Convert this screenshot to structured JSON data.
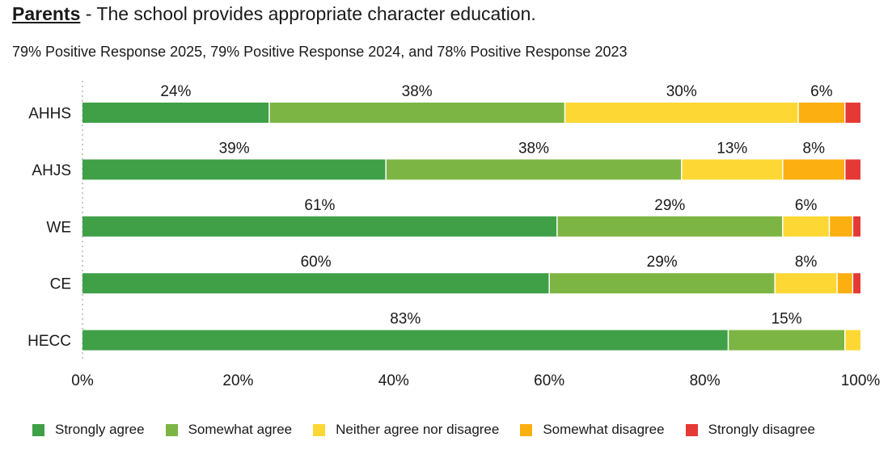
{
  "title": {
    "prefix": "Parents",
    "rest": " - The school provides appropriate character education."
  },
  "chart_data": {
    "type": "bar",
    "orientation": "horizontal",
    "stacked": true,
    "title": "Parents - The school provides appropriate character education.",
    "subtitle": "79% Positive Response 2025, 79% Positive Response 2024, and 78% Positive Response 2023",
    "categories": [
      "AHHS",
      "AHJS",
      "WE",
      "CE",
      "HECC"
    ],
    "xlim": [
      0,
      100
    ],
    "xticks": [
      "0%",
      "20%",
      "40%",
      "60%",
      "80%",
      "100%"
    ],
    "series": [
      {
        "name": "Strongly agree",
        "color": "#3fa047",
        "values": [
          24,
          39,
          61,
          60,
          83
        ],
        "labels": [
          "24%",
          "39%",
          "61%",
          "60%",
          "83%"
        ]
      },
      {
        "name": "Somewhat agree",
        "color": "#7cb543",
        "values": [
          38,
          38,
          29,
          29,
          15
        ],
        "labels": [
          "38%",
          "38%",
          "29%",
          "29%",
          "15%"
        ]
      },
      {
        "name": "Neither agree nor disagree",
        "color": "#fdd835",
        "values": [
          30,
          13,
          6,
          8,
          2
        ],
        "labels": [
          "30%",
          "13%",
          "6%",
          "8%",
          ""
        ]
      },
      {
        "name": "Somewhat disagree",
        "color": "#fbaf10",
        "values": [
          6,
          8,
          3,
          2,
          0
        ],
        "labels": [
          "6%",
          "8%",
          "",
          "",
          ""
        ]
      },
      {
        "name": "Strongly disagree",
        "color": "#e53935",
        "values": [
          2,
          2,
          1,
          1,
          0
        ],
        "labels": [
          "",
          "",
          "",
          "",
          ""
        ]
      }
    ],
    "legend_position": "bottom"
  }
}
